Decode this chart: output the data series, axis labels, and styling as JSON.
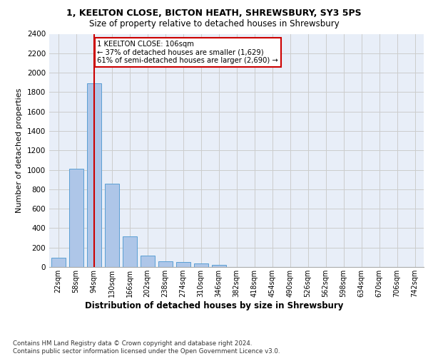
{
  "title_line1": "1, KEELTON CLOSE, BICTON HEATH, SHREWSBURY, SY3 5PS",
  "title_line2": "Size of property relative to detached houses in Shrewsbury",
  "xlabel": "Distribution of detached houses by size in Shrewsbury",
  "ylabel": "Number of detached properties",
  "footnote": "Contains HM Land Registry data © Crown copyright and database right 2024.\nContains public sector information licensed under the Open Government Licence v3.0.",
  "bar_labels": [
    "22sqm",
    "58sqm",
    "94sqm",
    "130sqm",
    "166sqm",
    "202sqm",
    "238sqm",
    "274sqm",
    "310sqm",
    "346sqm",
    "382sqm",
    "418sqm",
    "454sqm",
    "490sqm",
    "526sqm",
    "562sqm",
    "598sqm",
    "634sqm",
    "670sqm",
    "706sqm",
    "742sqm"
  ],
  "bar_values": [
    95,
    1010,
    1890,
    860,
    315,
    115,
    60,
    50,
    35,
    20,
    0,
    0,
    0,
    0,
    0,
    0,
    0,
    0,
    0,
    0,
    0
  ],
  "bar_color": "#aec6e8",
  "bar_edge_color": "#5a9fd4",
  "ylim": [
    0,
    2400
  ],
  "yticks": [
    0,
    200,
    400,
    600,
    800,
    1000,
    1200,
    1400,
    1600,
    1800,
    2000,
    2200,
    2400
  ],
  "vline_x": 2,
  "annotation_text": "1 KEELTON CLOSE: 106sqm\n← 37% of detached houses are smaller (1,629)\n61% of semi-detached houses are larger (2,690) →",
  "vline_color": "#cc0000",
  "grid_color": "#cccccc",
  "background_color": "#e8eef8"
}
